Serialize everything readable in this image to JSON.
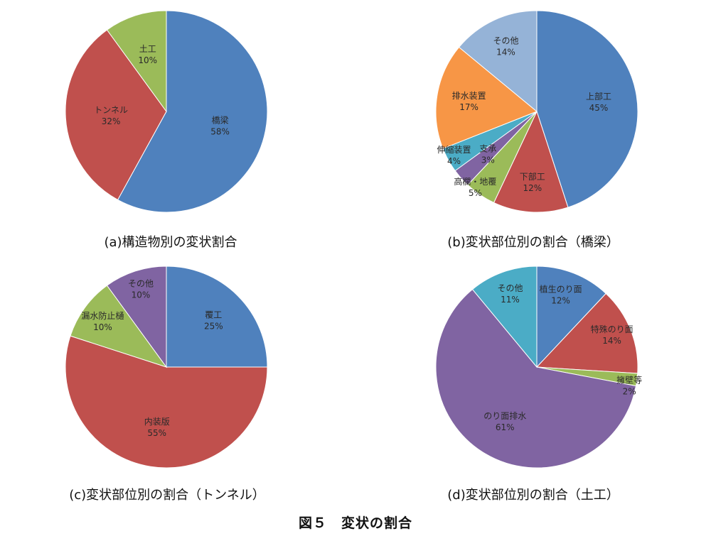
{
  "figure_title": "図５　変状の割合",
  "chart_data": [
    {
      "type": "pie",
      "caption": "(a)構造物別の変状割合",
      "slices": [
        {
          "label": "橋梁",
          "value": 58,
          "color": "#4f81bd"
        },
        {
          "label": "トンネル",
          "value": 32,
          "color": "#c0504d"
        },
        {
          "label": "土工",
          "value": 10,
          "color": "#9bbb59"
        }
      ]
    },
    {
      "type": "pie",
      "caption": "(b)変状部位別の割合（橋梁）",
      "slices": [
        {
          "label": "上部工",
          "value": 45,
          "color": "#4f81bd"
        },
        {
          "label": "下部工",
          "value": 12,
          "color": "#c0504d"
        },
        {
          "label": "高欄・地覆",
          "value": 5,
          "color": "#9bbb59"
        },
        {
          "label": "支承",
          "value": 3,
          "color": "#8064a2"
        },
        {
          "label": "伸縮装置",
          "value": 4,
          "color": "#4bacc6"
        },
        {
          "label": "排水装置",
          "value": 17,
          "color": "#f79646"
        },
        {
          "label": "その他",
          "value": 14,
          "color": "#95b3d7"
        }
      ]
    },
    {
      "type": "pie",
      "caption": "(c)変状部位別の割合（トンネル）",
      "slices": [
        {
          "label": "覆工",
          "value": 25,
          "color": "#4f81bd"
        },
        {
          "label": "内装版",
          "value": 55,
          "color": "#c0504d"
        },
        {
          "label": "漏水防止樋",
          "value": 10,
          "color": "#9bbb59"
        },
        {
          "label": "その他",
          "value": 10,
          "color": "#8064a2"
        }
      ]
    },
    {
      "type": "pie",
      "caption": "(d)変状部位別の割合（土工）",
      "slices": [
        {
          "label": "植生のり面",
          "value": 12,
          "color": "#4f81bd"
        },
        {
          "label": "特殊のり面",
          "value": 14,
          "color": "#c0504d"
        },
        {
          "label": "擁壁等",
          "value": 2,
          "color": "#9bbb59"
        },
        {
          "label": "のり面排水",
          "value": 61,
          "color": "#8064a2"
        },
        {
          "label": "その他",
          "value": 11,
          "color": "#4bacc6"
        }
      ]
    }
  ]
}
